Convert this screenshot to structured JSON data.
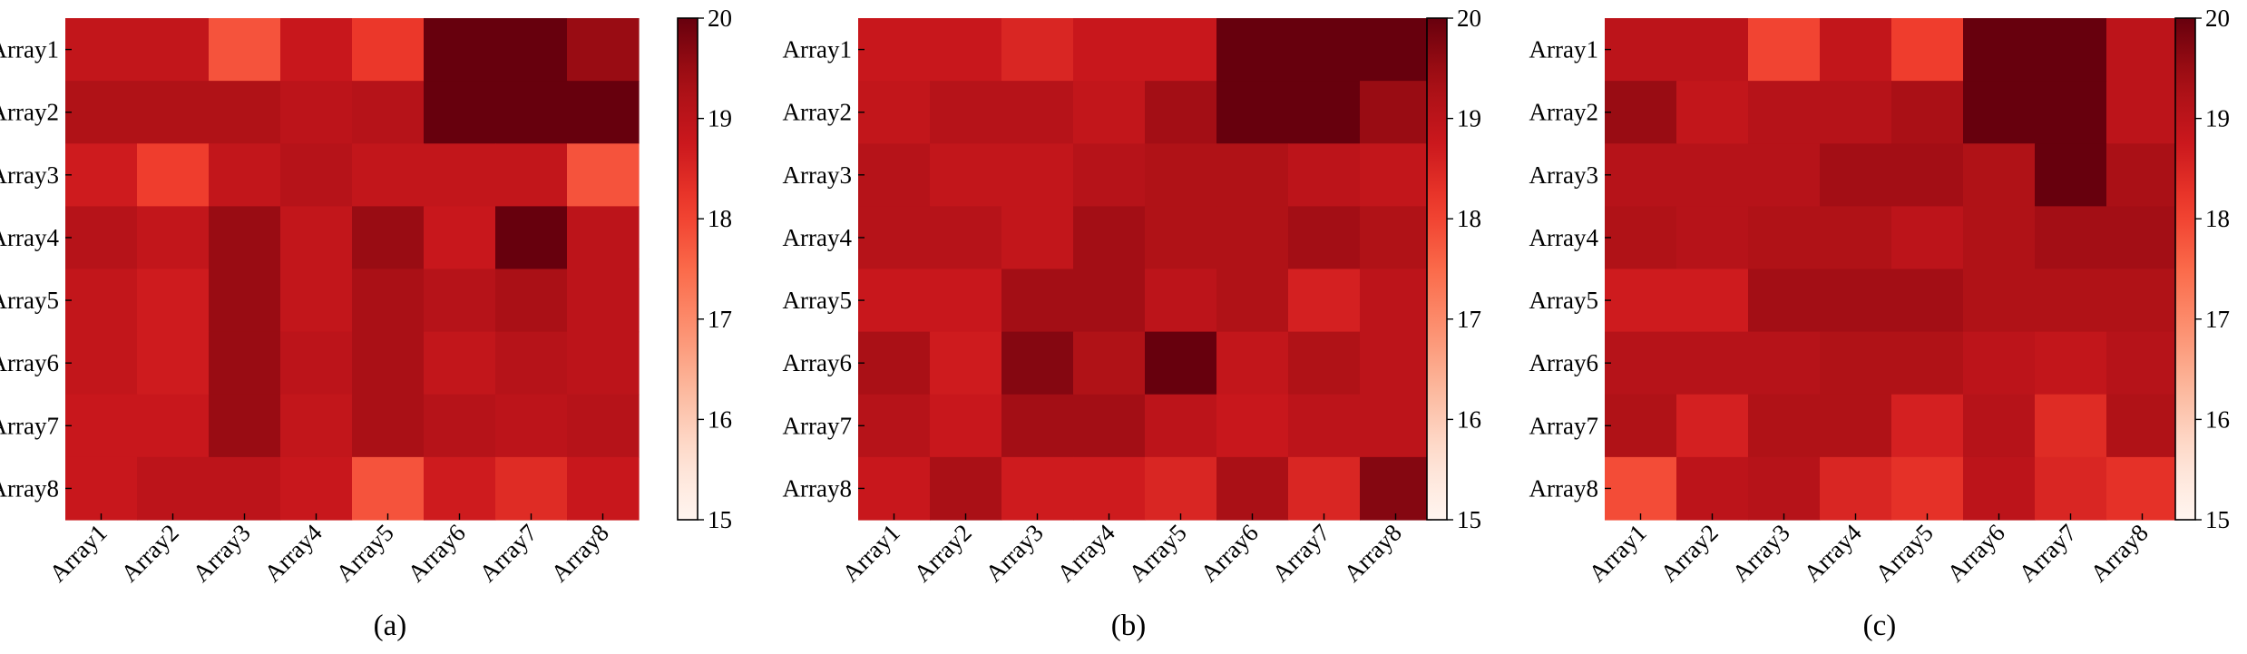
{
  "chart_data": [
    {
      "type": "heatmap",
      "caption": "(a)",
      "x_categories": [
        "Array1",
        "Array2",
        "Array3",
        "Array4",
        "Array5",
        "Array6",
        "Array7",
        "Array8"
      ],
      "y_categories": [
        "Array1",
        "Array2",
        "Array3",
        "Array4",
        "Array5",
        "Array6",
        "Array7",
        "Array8"
      ],
      "values": [
        [
          18.9,
          18.9,
          17.8,
          18.8,
          18.2,
          20.0,
          20.0,
          19.5
        ],
        [
          19.2,
          19.2,
          19.2,
          19.0,
          19.1,
          20.0,
          20.0,
          20.0
        ],
        [
          18.7,
          18.1,
          18.9,
          19.1,
          18.9,
          18.9,
          18.9,
          17.8
        ],
        [
          19.1,
          18.9,
          19.5,
          18.9,
          19.5,
          18.8,
          20.0,
          19.0
        ],
        [
          18.9,
          18.7,
          19.5,
          18.9,
          19.3,
          19.1,
          19.3,
          19.0
        ],
        [
          18.9,
          18.7,
          19.5,
          19.0,
          19.3,
          18.9,
          19.1,
          19.0
        ],
        [
          18.8,
          18.8,
          19.5,
          18.9,
          19.3,
          19.1,
          19.0,
          19.1
        ],
        [
          18.8,
          19.0,
          19.0,
          18.8,
          17.8,
          18.7,
          18.4,
          18.8
        ]
      ],
      "colorbar": {
        "min": 15,
        "max": 20,
        "ticks": [
          "15",
          "16",
          "17",
          "18",
          "19",
          "20"
        ],
        "colormap": "Reds"
      }
    },
    {
      "type": "heatmap",
      "caption": "(b)",
      "x_categories": [
        "Array1",
        "Array2",
        "Array3",
        "Array4",
        "Array5",
        "Array6",
        "Array7",
        "Array8"
      ],
      "y_categories": [
        "Array1",
        "Array2",
        "Array3",
        "Array4",
        "Array5",
        "Array6",
        "Array7",
        "Array8"
      ],
      "values": [
        [
          18.8,
          18.8,
          18.5,
          18.8,
          18.8,
          20.0,
          20.0,
          20.0
        ],
        [
          18.9,
          19.1,
          19.1,
          18.9,
          19.4,
          20.0,
          20.0,
          19.5
        ],
        [
          19.1,
          18.9,
          18.9,
          19.1,
          19.2,
          19.2,
          19.0,
          18.9
        ],
        [
          19.1,
          19.1,
          18.9,
          19.4,
          19.2,
          19.2,
          19.4,
          19.2
        ],
        [
          18.8,
          18.8,
          19.4,
          19.4,
          19.0,
          19.2,
          18.6,
          19.0
        ],
        [
          19.3,
          18.7,
          19.7,
          19.2,
          20.0,
          18.9,
          19.2,
          19.0
        ],
        [
          19.1,
          18.8,
          19.4,
          19.4,
          19.0,
          18.8,
          19.0,
          19.0
        ],
        [
          18.8,
          19.3,
          18.7,
          18.7,
          18.5,
          19.3,
          18.5,
          19.7
        ]
      ],
      "colorbar": {
        "min": 15,
        "max": 20,
        "ticks": [
          "15",
          "16",
          "17",
          "18",
          "19",
          "20"
        ],
        "colormap": "Reds"
      }
    },
    {
      "type": "heatmap",
      "caption": "(c)",
      "x_categories": [
        "Array1",
        "Array2",
        "Array3",
        "Array4",
        "Array5",
        "Array6",
        "Array7",
        "Array8"
      ],
      "y_categories": [
        "Array1",
        "Array2",
        "Array3",
        "Array4",
        "Array5",
        "Array6",
        "Array7",
        "Array8"
      ],
      "values": [
        [
          19.0,
          19.0,
          18.0,
          18.9,
          18.1,
          20.0,
          20.0,
          19.0
        ],
        [
          19.5,
          18.9,
          19.1,
          19.1,
          19.3,
          20.0,
          20.0,
          19.0
        ],
        [
          19.1,
          19.1,
          19.1,
          19.4,
          19.4,
          19.2,
          20.0,
          19.3
        ],
        [
          19.2,
          19.1,
          19.2,
          19.2,
          19.0,
          19.2,
          19.4,
          19.4
        ],
        [
          18.7,
          18.7,
          19.4,
          19.4,
          19.4,
          19.2,
          19.2,
          19.2
        ],
        [
          19.1,
          19.1,
          19.1,
          19.2,
          19.2,
          19.0,
          18.9,
          19.1
        ],
        [
          19.2,
          18.6,
          19.2,
          19.2,
          18.6,
          19.1,
          18.4,
          19.2
        ],
        [
          17.9,
          19.0,
          19.1,
          18.5,
          18.3,
          19.0,
          18.5,
          18.3
        ]
      ],
      "colorbar": {
        "min": 15,
        "max": 20,
        "ticks": [
          "15",
          "16",
          "17",
          "18",
          "19",
          "20"
        ],
        "colormap": "Reds"
      }
    }
  ]
}
